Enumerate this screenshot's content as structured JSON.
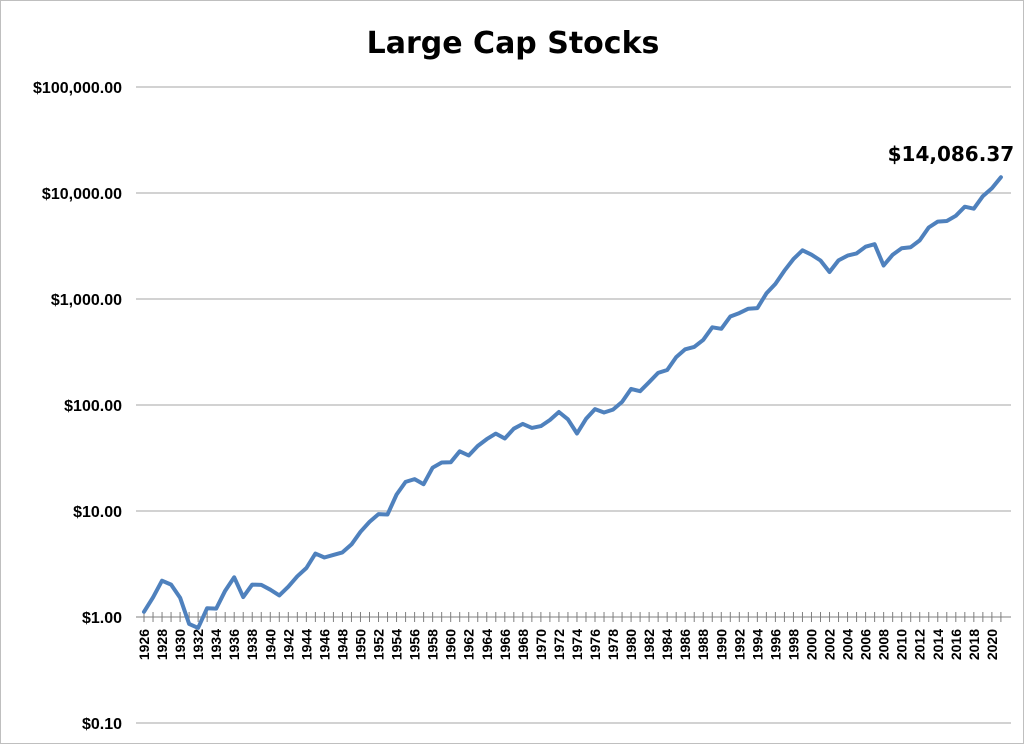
{
  "chart_data": {
    "type": "line",
    "title": "Large Cap Stocks",
    "xlabel": "",
    "ylabel": "",
    "y_scale": "log",
    "ylim": [
      0.1,
      100000
    ],
    "y_tick_values": [
      0.1,
      1,
      10,
      100,
      1000,
      10000,
      100000
    ],
    "y_tick_labels": [
      "$0.10",
      "$1.00",
      "$10.00",
      "$100.00",
      "$1,000.00",
      "$10,000.00",
      "$100,000.00"
    ],
    "x_tick_labels": [
      "1926",
      "1928",
      "1930",
      "1932",
      "1934",
      "1936",
      "1938",
      "1940",
      "1942",
      "1944",
      "1946",
      "1948",
      "1950",
      "1952",
      "1954",
      "1956",
      "1958",
      "1960",
      "1962",
      "1964",
      "1966",
      "1968",
      "1970",
      "1972",
      "1974",
      "1976",
      "1978",
      "1980",
      "1982",
      "1984",
      "1986",
      "1988",
      "1990",
      "1992",
      "1994",
      "1996",
      "1998",
      "2000",
      "2002",
      "2004",
      "2006",
      "2008",
      "2010",
      "2012",
      "2014",
      "2016",
      "2018",
      "2020"
    ],
    "grid": true,
    "legend": "none",
    "line_color": "#4f81bd",
    "annotation": {
      "text": "$14,086.37",
      "x": 2021,
      "y": 14086.37
    },
    "series": [
      {
        "x": [
          1926,
          1927,
          1928,
          1929,
          1930,
          1931,
          1932,
          1933,
          1934,
          1935,
          1936,
          1937,
          1938,
          1939,
          1940,
          1941,
          1942,
          1943,
          1944,
          1945,
          1946,
          1947,
          1948,
          1949,
          1950,
          1951,
          1952,
          1953,
          1954,
          1955,
          1956,
          1957,
          1958,
          1959,
          1960,
          1961,
          1962,
          1963,
          1964,
          1965,
          1966,
          1967,
          1968,
          1969,
          1970,
          1971,
          1972,
          1973,
          1974,
          1975,
          1976,
          1977,
          1978,
          1979,
          1980,
          1981,
          1982,
          1983,
          1984,
          1985,
          1986,
          1987,
          1988,
          1989,
          1990,
          1991,
          1992,
          1993,
          1994,
          1995,
          1996,
          1997,
          1998,
          1999,
          2000,
          2001,
          2002,
          2003,
          2004,
          2005,
          2006,
          2007,
          2008,
          2009,
          2010,
          2011,
          2012,
          2013,
          2014,
          2015,
          2016,
          2017,
          2018,
          2019,
          2020,
          2021
        ],
        "values": [
          1.12,
          1.53,
          2.2,
          2.02,
          1.52,
          0.86,
          0.79,
          1.21,
          1.2,
          1.77,
          2.37,
          1.54,
          2.02,
          2.01,
          1.81,
          1.6,
          1.93,
          2.42,
          2.9,
          3.96,
          3.64,
          3.85,
          4.07,
          4.84,
          6.37,
          7.9,
          9.35,
          9.26,
          14.3,
          18.8,
          20.0,
          17.9,
          25.6,
          28.7,
          28.8,
          36.6,
          33.4,
          41.0,
          47.7,
          53.7,
          48.3,
          59.8,
          66.4,
          60.8,
          63.2,
          72.2,
          85.9,
          73.3,
          53.9,
          74.0,
          91.5,
          84.9,
          90.5,
          107,
          142,
          135,
          164,
          201,
          214,
          283,
          335,
          353,
          411,
          541,
          524,
          684,
          736,
          810,
          821,
          1129,
          1388,
          1851,
          2380,
          2882,
          2620,
          2309,
          1798,
          2314,
          2566,
          2692,
          3117,
          3288,
          2072,
          2620,
          3015,
          3078,
          3571,
          4727,
          5373,
          5448,
          6100,
          7431,
          7106,
          9343,
          11063,
          14086.37
        ]
      }
    ]
  }
}
